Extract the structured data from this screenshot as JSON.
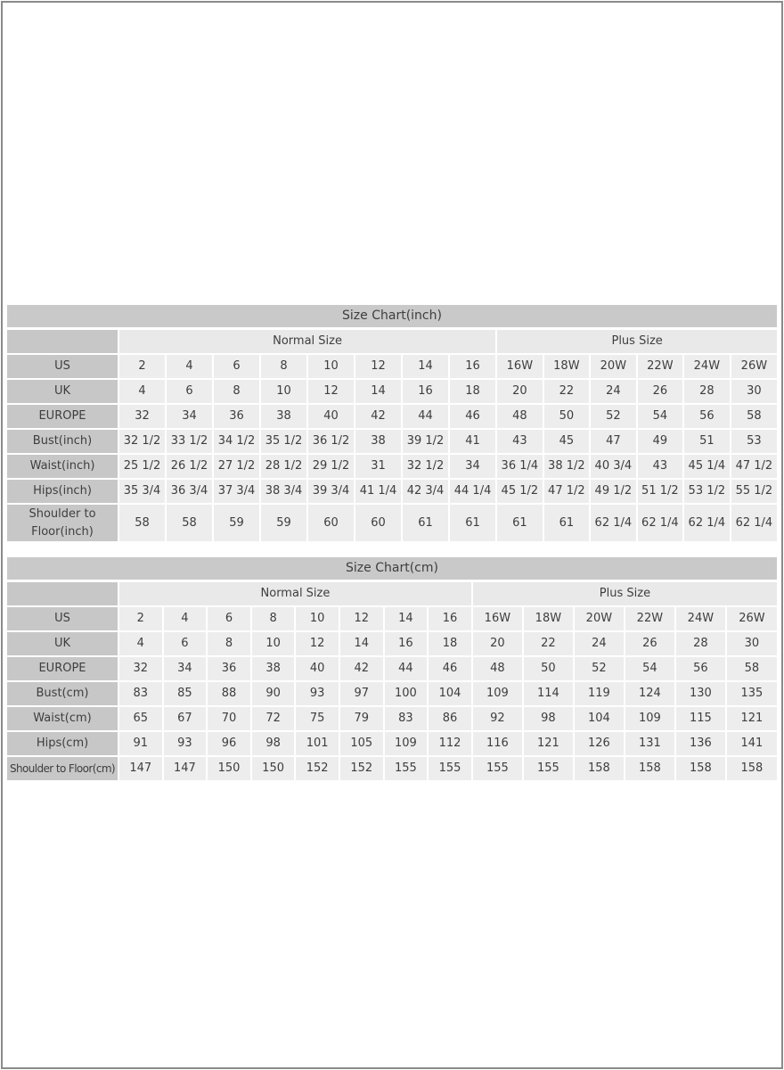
{
  "page": {
    "background": "#ffffff",
    "border_color": "#8a8a8a"
  },
  "colors": {
    "title_bar": "#c9c9c9",
    "label_cell": "#c7c7c7",
    "group_header_cell": "#e9e9e9",
    "data_cell": "#ededed",
    "grid_line": "#ffffff",
    "text": "#3e3e3e"
  },
  "tables": [
    {
      "title": "Size Chart(inch)",
      "group_headers": [
        {
          "label": "Normal Size",
          "span": 8
        },
        {
          "label": "Plus Size",
          "span": 6
        }
      ],
      "rows": [
        {
          "label": "US",
          "values": [
            "2",
            "4",
            "6",
            "8",
            "10",
            "12",
            "14",
            "16",
            "16W",
            "18W",
            "20W",
            "22W",
            "24W",
            "26W"
          ]
        },
        {
          "label": "UK",
          "values": [
            "4",
            "6",
            "8",
            "10",
            "12",
            "14",
            "16",
            "18",
            "20",
            "22",
            "24",
            "26",
            "28",
            "30"
          ]
        },
        {
          "label": "EUROPE",
          "values": [
            "32",
            "34",
            "36",
            "38",
            "40",
            "42",
            "44",
            "46",
            "48",
            "50",
            "52",
            "54",
            "56",
            "58"
          ]
        },
        {
          "label": "Bust(inch)",
          "values": [
            "32 1/2",
            "33 1/2",
            "34 1/2",
            "35 1/2",
            "36 1/2",
            "38",
            "39 1/2",
            "41",
            "43",
            "45",
            "47",
            "49",
            "51",
            "53"
          ]
        },
        {
          "label": "Waist(inch)",
          "values": [
            "25 1/2",
            "26 1/2",
            "27 1/2",
            "28 1/2",
            "29 1/2",
            "31",
            "32 1/2",
            "34",
            "36 1/4",
            "38 1/2",
            "40 3/4",
            "43",
            "45 1/4",
            "47 1/2"
          ]
        },
        {
          "label": "Hips(inch)",
          "values": [
            "35 3/4",
            "36 3/4",
            "37 3/4",
            "38 3/4",
            "39 3/4",
            "41 1/4",
            "42 3/4",
            "44 1/4",
            "45 1/2",
            "47 1/2",
            "49 1/2",
            "51 1/2",
            "53 1/2",
            "55 1/2"
          ]
        },
        {
          "label": "Shoulder to Floor(inch)",
          "values": [
            "58",
            "58",
            "59",
            "59",
            "60",
            "60",
            "61",
            "61",
            "61",
            "61",
            "62 1/4",
            "62 1/4",
            "62 1/4",
            "62 1/4"
          ]
        }
      ]
    },
    {
      "title": "Size Chart(cm)",
      "group_headers": [
        {
          "label": "Normal Size",
          "span": 8
        },
        {
          "label": "Plus Size",
          "span": 6
        }
      ],
      "rows": [
        {
          "label": "US",
          "values": [
            "2",
            "4",
            "6",
            "8",
            "10",
            "12",
            "14",
            "16",
            "16W",
            "18W",
            "20W",
            "22W",
            "24W",
            "26W"
          ]
        },
        {
          "label": "UK",
          "values": [
            "4",
            "6",
            "8",
            "10",
            "12",
            "14",
            "16",
            "18",
            "20",
            "22",
            "24",
            "26",
            "28",
            "30"
          ]
        },
        {
          "label": "EUROPE",
          "values": [
            "32",
            "34",
            "36",
            "38",
            "40",
            "42",
            "44",
            "46",
            "48",
            "50",
            "52",
            "54",
            "56",
            "58"
          ]
        },
        {
          "label": "Bust(cm)",
          "values": [
            "83",
            "85",
            "88",
            "90",
            "93",
            "97",
            "100",
            "104",
            "109",
            "114",
            "119",
            "124",
            "130",
            "135"
          ]
        },
        {
          "label": "Waist(cm)",
          "values": [
            "65",
            "67",
            "70",
            "72",
            "75",
            "79",
            "83",
            "86",
            "92",
            "98",
            "104",
            "109",
            "115",
            "121"
          ]
        },
        {
          "label": "Hips(cm)",
          "values": [
            "91",
            "93",
            "96",
            "98",
            "101",
            "105",
            "109",
            "112",
            "116",
            "121",
            "126",
            "131",
            "136",
            "141"
          ]
        },
        {
          "label": "Shoulder to Floor(cm)",
          "values": [
            "147",
            "147",
            "150",
            "150",
            "152",
            "152",
            "155",
            "155",
            "155",
            "155",
            "158",
            "158",
            "158",
            "158"
          ]
        }
      ]
    }
  ]
}
